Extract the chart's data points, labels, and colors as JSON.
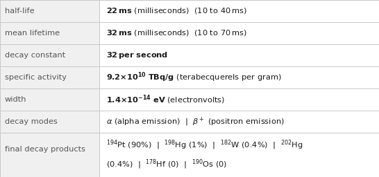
{
  "rows": [
    {
      "label": "half-life"
    },
    {
      "label": "mean lifetime"
    },
    {
      "label": "decay constant"
    },
    {
      "label": "specific activity"
    },
    {
      "label": "width"
    },
    {
      "label": "decay modes"
    },
    {
      "label": "final decay products"
    }
  ],
  "col_split": 0.262,
  "bg_color": "#ffffff",
  "left_bg": "#f0f0f0",
  "right_bg": "#ffffff",
  "grid_color": "#c8c8c8",
  "text_color": "#1a1a1a",
  "label_color": "#555555",
  "label_fs": 8.2,
  "val_fs": 8.2,
  "fig_w": 5.46,
  "fig_h": 2.56,
  "dpi": 100
}
